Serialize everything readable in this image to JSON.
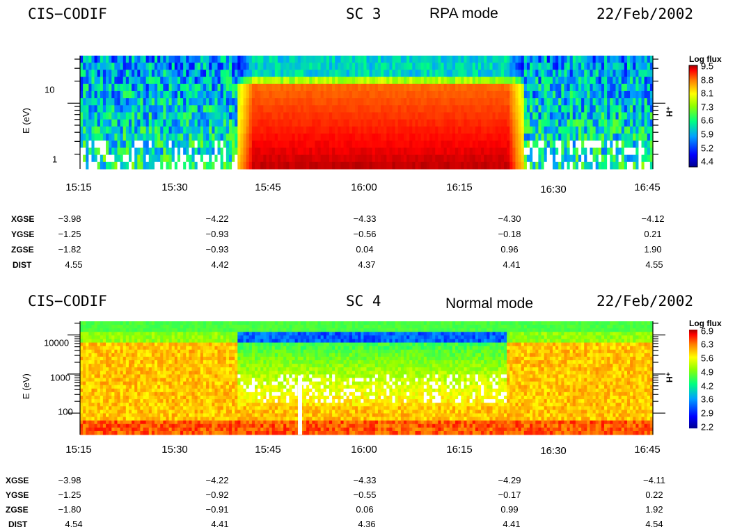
{
  "panels": [
    {
      "instrument": "CIS−CODIF",
      "spacecraft": "SC  3",
      "mode": "RPA mode",
      "date": "22/Feb/2002",
      "species": "H⁺",
      "colorbar": {
        "title": "Log flux",
        "ticks": [
          "9.5",
          "8.8",
          "8.1",
          "7.3",
          "6.6",
          "5.9",
          "5.2",
          "4.4"
        ]
      },
      "table": {
        "rows": [
          {
            "label": "XGSE",
            "values": [
              "−3.98",
              "−4.22",
              "−4.33",
              "−4.30",
              "−4.12"
            ]
          },
          {
            "label": "YGSE",
            "values": [
              "−1.25",
              "−0.93",
              "−0.56",
              "−0.18",
              "0.21"
            ]
          },
          {
            "label": "ZGSE",
            "values": [
              "−1.82",
              "−0.93",
              "0.04",
              "0.96",
              "1.90"
            ]
          },
          {
            "label": "DIST",
            "values": [
              "4.55",
              "4.42",
              "4.37",
              "4.41",
              "4.55"
            ]
          }
        ]
      }
    },
    {
      "instrument": "CIS−CODIF",
      "spacecraft": "SC  4",
      "mode": "Normal mode",
      "date": "22/Feb/2002",
      "species": "H⁺",
      "colorbar": {
        "title": "Log flux",
        "ticks": [
          "6.9",
          "6.3",
          "5.6",
          "4.9",
          "4.2",
          "3.6",
          "2.9",
          "2.2"
        ]
      },
      "table": {
        "rows": [
          {
            "label": "XGSE",
            "values": [
              "−3.98",
              "−4.22",
              "−4.33",
              "−4.29",
              "−4.11"
            ]
          },
          {
            "label": "YGSE",
            "values": [
              "−1.25",
              "−0.92",
              "−0.55",
              "−0.17",
              "0.22"
            ]
          },
          {
            "label": "ZGSE",
            "values": [
              "−1.80",
              "−0.91",
              "0.06",
              "0.99",
              "1.92"
            ]
          },
          {
            "label": "DIST",
            "values": [
              "4.54",
              "4.41",
              "4.36",
              "4.41",
              "4.54"
            ]
          }
        ]
      }
    }
  ],
  "chart_data": [
    {
      "type": "heatmap",
      "title": "CIS−CODIF SC 3 RPA mode 22/Feb/2002",
      "xlabel": "",
      "ylabel": "E (eV)",
      "x_ticks": [
        "15:15",
        "15:30",
        "15:45",
        "16:00",
        "16:15",
        "16:30",
        "16:45"
      ],
      "y_ticks": [
        "1",
        "10"
      ],
      "y_scale": "log",
      "colorbar_label": "Log flux",
      "colorbar_range": [
        4.4,
        9.5
      ],
      "colormap": "rainbow (blue-green-yellow-red)",
      "description_values": {
        "background_flux_level": 5.0,
        "enhanced_interval": [
          "15:40",
          "16:23"
        ],
        "enhanced_flux_level": 9.3
      }
    },
    {
      "type": "heatmap",
      "title": "CIS−CODIF SC 4 Normal mode 22/Feb/2002",
      "xlabel": "",
      "ylabel": "E (eV)",
      "x_ticks": [
        "15:15",
        "15:30",
        "15:45",
        "16:00",
        "16:15",
        "16:30",
        "16:45"
      ],
      "y_ticks": [
        "100",
        "1000",
        "10000"
      ],
      "y_scale": "log",
      "colorbar_label": "Log flux",
      "colorbar_range": [
        2.2,
        6.9
      ],
      "colormap": "rainbow (blue-green-yellow-red)",
      "description_values": {
        "background_flux_level": 5.6,
        "depleted_interval": [
          "15:40",
          "16:20"
        ],
        "depleted_flux_level": 4.0
      }
    }
  ]
}
